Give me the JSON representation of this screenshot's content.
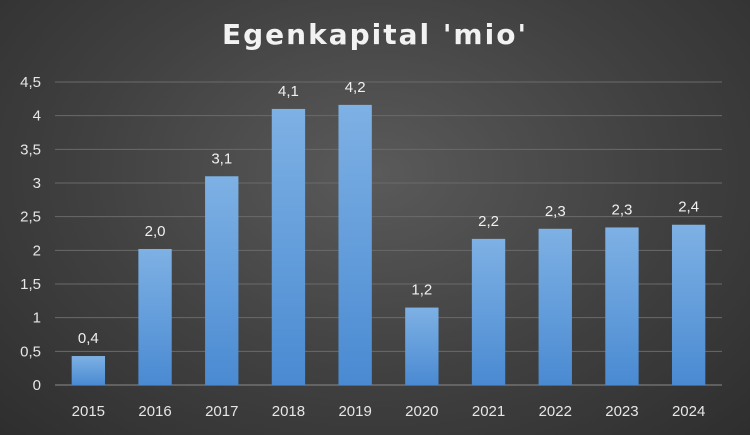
{
  "chart_data": {
    "type": "bar",
    "title": "Egenkapital 'mio'",
    "xlabel": "",
    "ylabel": "",
    "categories": [
      "2015",
      "2016",
      "2017",
      "2018",
      "2019",
      "2020",
      "2021",
      "2022",
      "2023",
      "2024"
    ],
    "values": [
      0.43,
      2.02,
      3.1,
      4.1,
      4.16,
      1.15,
      2.17,
      2.32,
      2.34,
      2.38
    ],
    "data_labels": [
      "0,4",
      "2,0",
      "3,1",
      "4,1",
      "4,2",
      "1,2",
      "2,2",
      "2,3",
      "2,3",
      "2,4"
    ],
    "ylim": [
      0,
      4.5
    ],
    "yticks": [
      0,
      0.5,
      1,
      1.5,
      2,
      2.5,
      3,
      3.5,
      4,
      4.5
    ],
    "ytick_labels": [
      "0",
      "0,5",
      "1",
      "1,5",
      "2",
      "2,5",
      "3",
      "3,5",
      "4",
      "4,5"
    ],
    "grid": true,
    "legend": "none",
    "colors": {
      "bar_top": "#7eb1e4",
      "bar_bottom": "#4a8ad2",
      "grid": "#6a6a6a",
      "text": "#e6e6e6"
    }
  }
}
